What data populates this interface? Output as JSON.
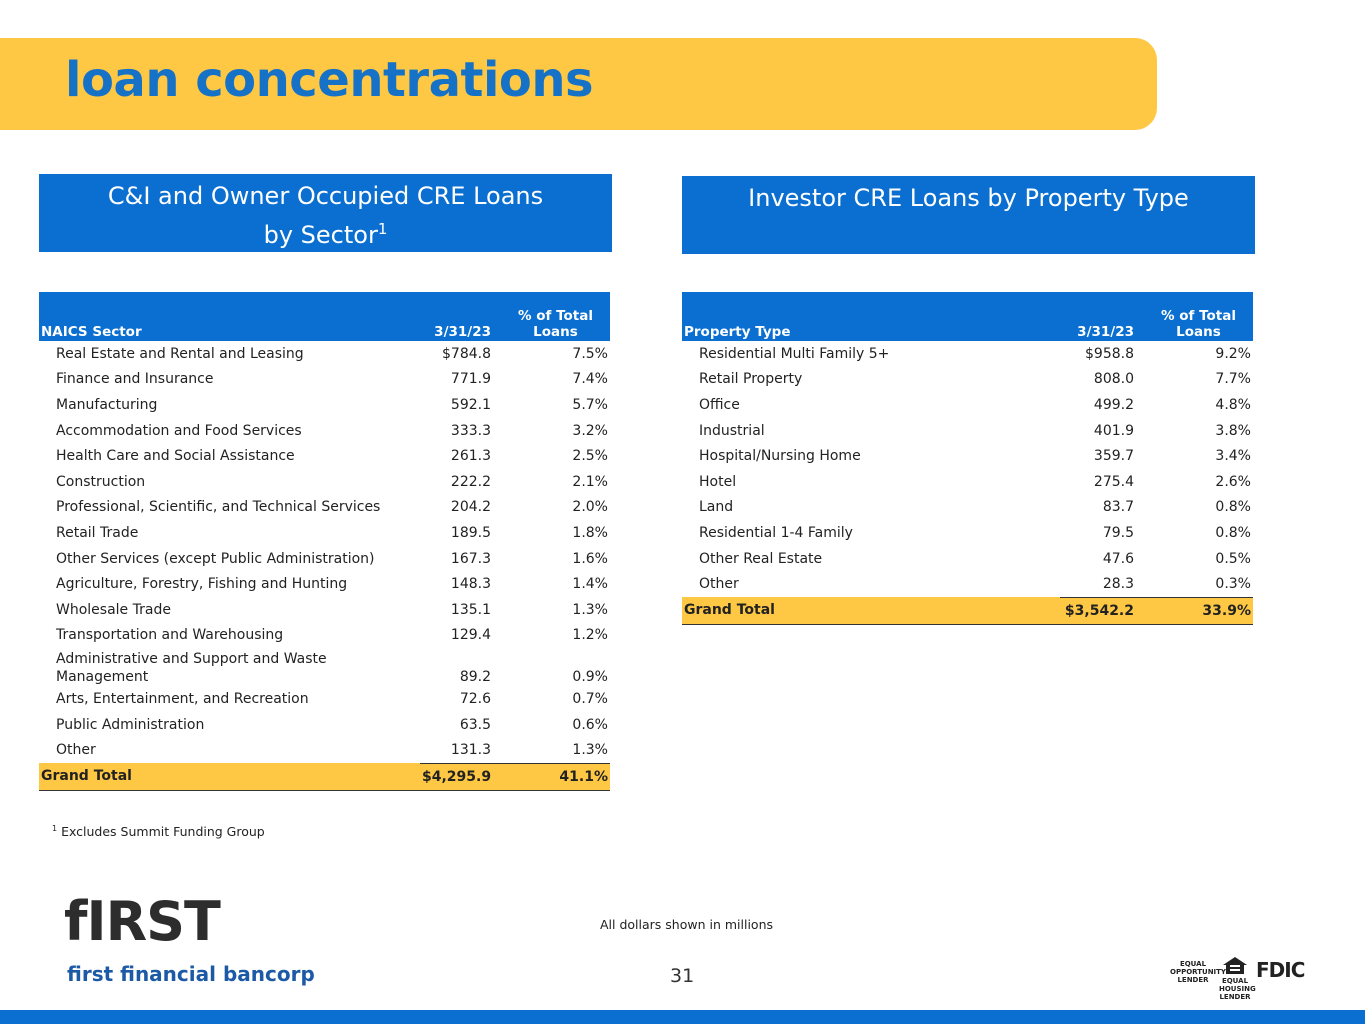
{
  "header": {
    "title": "loan concentrations"
  },
  "left": {
    "heading": [
      "C&I and Owner Occupied CRE Loans",
      "by Sector"
    ],
    "heading_sup": "1",
    "columns": [
      "NAICS Sector",
      "3/31/23",
      "% of Total Loans"
    ],
    "rows": [
      [
        "Real Estate and Rental and Leasing",
        "$784.8",
        "7.5%"
      ],
      [
        "Finance and Insurance",
        "771.9",
        "7.4%"
      ],
      [
        "Manufacturing",
        "592.1",
        "5.7%"
      ],
      [
        "Accommodation and Food Services",
        "333.3",
        "3.2%"
      ],
      [
        "Health Care and Social Assistance",
        "261.3",
        "2.5%"
      ],
      [
        "Construction",
        "222.2",
        "2.1%"
      ],
      [
        "Professional, Scientific, and Technical Services",
        "204.2",
        "2.0%"
      ],
      [
        "Retail Trade",
        "189.5",
        "1.8%"
      ],
      [
        "Other Services (except Public Administration)",
        "167.3",
        "1.6%"
      ],
      [
        "Agriculture, Forestry, Fishing and Hunting",
        "148.3",
        "1.4%"
      ],
      [
        "Wholesale Trade",
        "135.1",
        "1.3%"
      ],
      [
        "Transportation and Warehousing",
        "129.4",
        "1.2%"
      ],
      [
        "Administrative and Support and Waste Management",
        "89.2",
        "0.9%"
      ],
      [
        "Arts, Entertainment, and Recreation",
        "72.6",
        "0.7%"
      ],
      [
        "Public Administration",
        "63.5",
        "0.6%"
      ],
      [
        "Other",
        "131.3",
        "1.3%"
      ]
    ],
    "total": [
      "Grand Total",
      "$4,295.9",
      "41.1%"
    ]
  },
  "right": {
    "heading": [
      "Investor CRE Loans by Property Type"
    ],
    "columns": [
      "Property Type",
      "3/31/23",
      "% of Total Loans"
    ],
    "rows": [
      [
        "Residential Multi Family 5+",
        "$958.8",
        "9.2%"
      ],
      [
        "Retail Property",
        "808.0",
        "7.7%"
      ],
      [
        "Office",
        "499.2",
        "4.8%"
      ],
      [
        "Industrial",
        "401.9",
        "3.8%"
      ],
      [
        "Hospital/Nursing Home",
        "359.7",
        "3.4%"
      ],
      [
        "Hotel",
        "275.4",
        "2.6%"
      ],
      [
        "Land",
        "83.7",
        "0.8%"
      ],
      [
        "Residential 1-4 Family",
        "79.5",
        "0.8%"
      ],
      [
        "Other Real Estate",
        "47.6",
        "0.5%"
      ],
      [
        "Other",
        "28.3",
        "0.3%"
      ]
    ],
    "total": [
      "Grand Total",
      "$3,542.2",
      "33.9%"
    ]
  },
  "footnote": {
    "mark": "1",
    "text": "Excludes Summit Funding Group"
  },
  "note": "All dollars shown in millions",
  "page_number": "31",
  "logo": {
    "brand": "fIRST",
    "name": "first financial bancorp"
  },
  "badges": [
    "EQUAL OPPORTUNITY LENDER",
    "EQUAL HOUSING LENDER",
    "FDIC"
  ]
}
